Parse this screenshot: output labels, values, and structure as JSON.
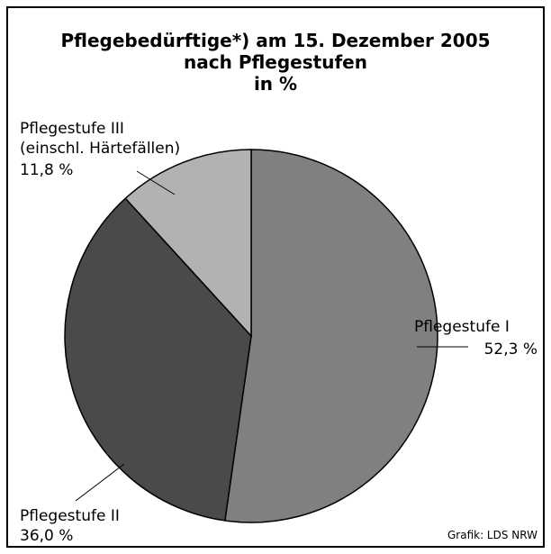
{
  "chart_data": {
    "type": "pie",
    "title": "Pflegebedürftige*) am 15. Dezember 2005\nnach Pflegestufen\nin %",
    "categories": [
      "Pflegestufe I",
      "Pflegestufe II",
      "Pflegestufe III\n(einschl. Härtefällen)"
    ],
    "values": [
      52.3,
      36.0,
      11.8
    ],
    "value_labels": [
      "52,3 %",
      "36,0 %",
      "11,8 %"
    ],
    "colors": [
      "#808080",
      "#4a4a4a",
      "#b2b2b2"
    ],
    "source": "Grafik: LDS NRW"
  }
}
